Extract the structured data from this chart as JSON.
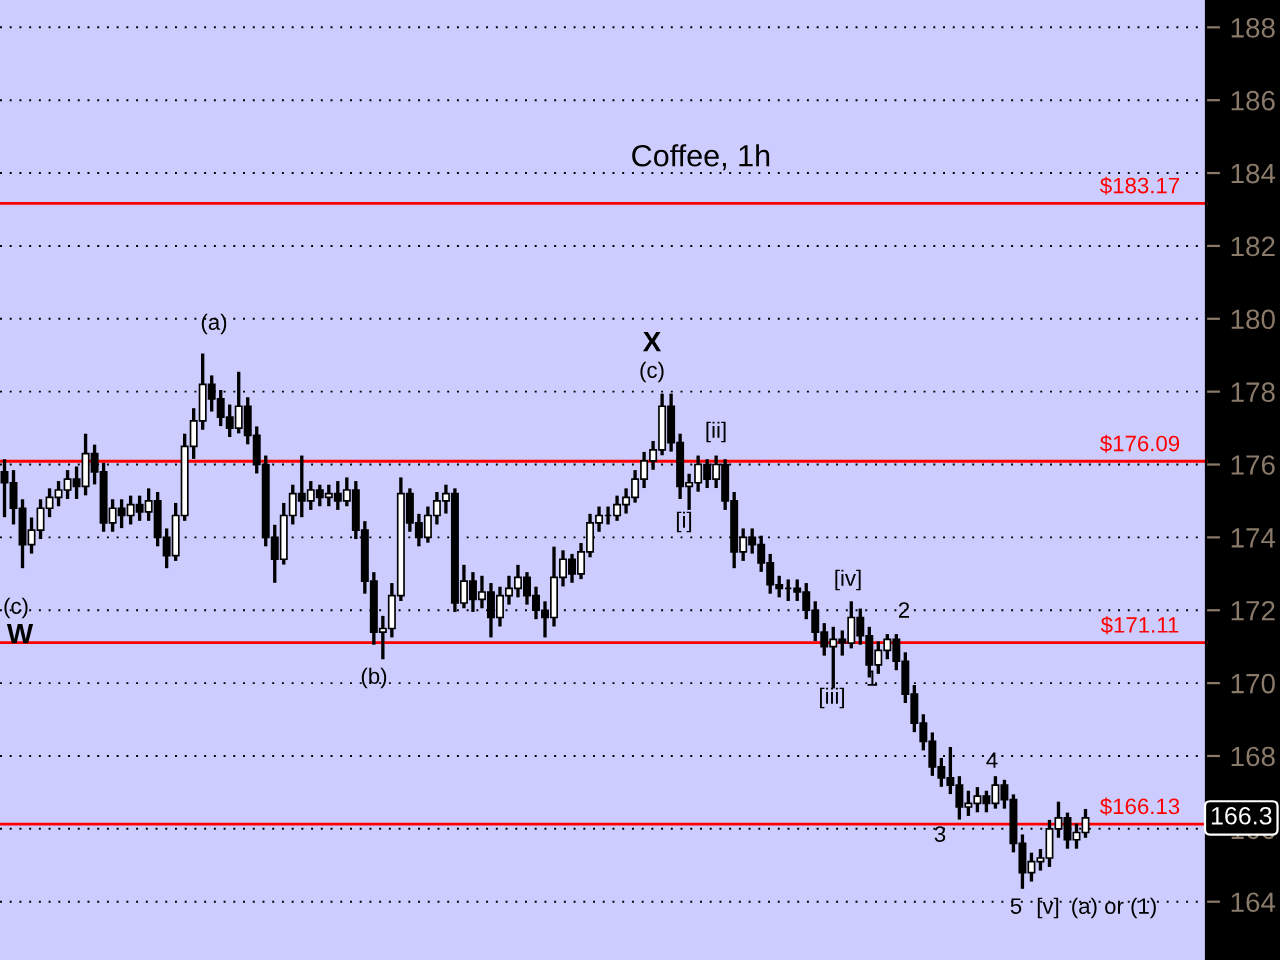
{
  "chart_data": {
    "type": "candlestick",
    "title": "Coffee, 1h",
    "categories": [
      null,
      null,
      null,
      null,
      null,
      null,
      null,
      null,
      null,
      null,
      null,
      null,
      null,
      null,
      null,
      null,
      null,
      null,
      null,
      null,
      null,
      null,
      null,
      null,
      null,
      null,
      null,
      null,
      null,
      null,
      null,
      null,
      null,
      null,
      null,
      null,
      null,
      null,
      null,
      null,
      null,
      null,
      null,
      null,
      null,
      null,
      null,
      null,
      null,
      null,
      null,
      null,
      null,
      null,
      null,
      null,
      null,
      null,
      null,
      null,
      null,
      null,
      null,
      null,
      null,
      null,
      null,
      null,
      null,
      null,
      null,
      null,
      null,
      null,
      null,
      null,
      null,
      null,
      null,
      null,
      null,
      null,
      null,
      null,
      null,
      null,
      null,
      null,
      null,
      null,
      null,
      null,
      null,
      null,
      null,
      null,
      null,
      null,
      null,
      null,
      null,
      null,
      null,
      null,
      null,
      null,
      null,
      null,
      null,
      null,
      null,
      null,
      null,
      null,
      null,
      null,
      null,
      null,
      null,
      null,
      null
    ],
    "ohlc": [
      [
        175.8,
        176.1,
        174.6,
        175.5
      ],
      [
        175.5,
        175.8,
        174.4,
        174.8
      ],
      [
        174.8,
        175.0,
        173.2,
        173.8
      ],
      [
        173.8,
        174.5,
        173.6,
        174.2
      ],
      [
        174.2,
        175.0,
        174.0,
        174.8
      ],
      [
        174.8,
        175.3,
        174.6,
        175.1
      ],
      [
        175.1,
        175.5,
        174.9,
        175.3
      ],
      [
        175.3,
        175.8,
        175.1,
        175.6
      ],
      [
        175.6,
        175.9,
        175.1,
        175.4
      ],
      [
        175.4,
        176.8,
        175.2,
        176.3
      ],
      [
        176.3,
        176.5,
        175.5,
        175.8
      ],
      [
        175.8,
        176.0,
        174.2,
        174.4
      ],
      [
        174.4,
        175.0,
        174.2,
        174.8
      ],
      [
        174.8,
        175.0,
        174.3,
        174.6
      ],
      [
        174.6,
        175.1,
        174.4,
        174.9
      ],
      [
        174.9,
        175.1,
        174.5,
        174.7
      ],
      [
        174.7,
        175.3,
        174.5,
        175.0
      ],
      [
        175.0,
        175.2,
        173.8,
        174.0
      ],
      [
        174.0,
        174.2,
        173.2,
        173.5
      ],
      [
        173.5,
        174.9,
        173.4,
        174.6
      ],
      [
        174.6,
        176.8,
        174.5,
        176.5
      ],
      [
        176.5,
        177.5,
        176.2,
        177.2
      ],
      [
        177.2,
        179.0,
        177.0,
        178.2
      ],
      [
        178.2,
        178.4,
        177.5,
        177.8
      ],
      [
        177.8,
        178.0,
        177.1,
        177.3
      ],
      [
        177.3,
        177.6,
        176.8,
        177.0
      ],
      [
        177.0,
        178.5,
        176.9,
        177.6
      ],
      [
        177.6,
        177.8,
        176.6,
        176.8
      ],
      [
        176.8,
        177.0,
        175.8,
        176.0
      ],
      [
        176.0,
        176.2,
        173.8,
        174.0
      ],
      [
        174.0,
        174.3,
        172.8,
        173.4
      ],
      [
        173.4,
        174.9,
        173.3,
        174.6
      ],
      [
        174.6,
        175.4,
        174.4,
        175.2
      ],
      [
        175.2,
        176.2,
        174.6,
        175.0
      ],
      [
        175.0,
        175.5,
        174.8,
        175.3
      ],
      [
        175.3,
        175.4,
        174.9,
        175.1
      ],
      [
        175.1,
        175.4,
        174.9,
        175.2
      ],
      [
        175.2,
        175.5,
        174.8,
        175.0
      ],
      [
        175.0,
        175.6,
        174.9,
        175.3
      ],
      [
        175.3,
        175.5,
        174.0,
        174.2
      ],
      [
        174.2,
        174.4,
        172.5,
        172.8
      ],
      [
        172.8,
        173.0,
        171.1,
        171.4
      ],
      [
        171.4,
        171.8,
        170.7,
        171.5
      ],
      [
        171.5,
        172.7,
        171.3,
        172.4
      ],
      [
        172.4,
        175.6,
        172.3,
        175.2
      ],
      [
        175.2,
        175.3,
        174.2,
        174.4
      ],
      [
        174.4,
        174.6,
        173.8,
        174.0
      ],
      [
        174.0,
        174.8,
        173.9,
        174.6
      ],
      [
        174.6,
        175.2,
        174.4,
        175.0
      ],
      [
        175.0,
        175.4,
        174.7,
        175.2
      ],
      [
        175.2,
        175.3,
        172.0,
        172.2
      ],
      [
        172.2,
        173.2,
        172.1,
        172.8
      ],
      [
        172.8,
        173.0,
        172.0,
        172.3
      ],
      [
        172.3,
        172.9,
        172.1,
        172.5
      ],
      [
        172.5,
        172.7,
        171.3,
        171.8
      ],
      [
        171.8,
        172.6,
        171.6,
        172.4
      ],
      [
        172.4,
        172.9,
        172.2,
        172.6
      ],
      [
        172.6,
        173.2,
        172.4,
        172.9
      ],
      [
        172.9,
        173.0,
        172.2,
        172.4
      ],
      [
        172.4,
        172.6,
        171.8,
        172.0
      ],
      [
        172.0,
        172.2,
        171.3,
        171.8
      ],
      [
        171.8,
        173.7,
        171.6,
        172.9
      ],
      [
        172.9,
        173.6,
        172.7,
        173.4
      ],
      [
        173.4,
        173.5,
        172.8,
        173.0
      ],
      [
        173.0,
        173.8,
        172.9,
        173.6
      ],
      [
        173.6,
        174.6,
        173.5,
        174.4
      ],
      [
        174.4,
        174.8,
        174.2,
        174.6
      ],
      [
        174.6,
        174.8,
        174.4,
        174.6
      ],
      [
        174.6,
        175.1,
        174.5,
        174.9
      ],
      [
        174.9,
        175.3,
        174.7,
        175.1
      ],
      [
        175.1,
        175.8,
        175.0,
        175.6
      ],
      [
        175.6,
        176.3,
        175.4,
        176.1
      ],
      [
        176.1,
        176.6,
        175.9,
        176.4
      ],
      [
        176.4,
        177.9,
        176.3,
        177.6
      ],
      [
        177.6,
        177.9,
        176.4,
        176.6
      ],
      [
        176.6,
        176.8,
        175.1,
        175.4
      ],
      [
        175.4,
        175.7,
        174.8,
        175.5
      ],
      [
        175.5,
        176.2,
        175.3,
        176.0
      ],
      [
        176.0,
        176.1,
        175.4,
        175.6
      ],
      [
        175.6,
        176.2,
        175.4,
        176.0
      ],
      [
        176.0,
        176.1,
        174.8,
        175.0
      ],
      [
        175.0,
        175.2,
        173.2,
        173.6
      ],
      [
        173.6,
        174.2,
        173.4,
        174.0
      ],
      [
        174.0,
        174.2,
        173.6,
        173.8
      ],
      [
        173.8,
        174.0,
        173.1,
        173.3
      ],
      [
        173.3,
        173.5,
        172.5,
        172.7
      ],
      [
        172.7,
        172.9,
        172.4,
        172.6
      ],
      [
        172.6,
        172.8,
        172.3,
        172.6
      ],
      [
        172.6,
        172.8,
        172.3,
        172.5
      ],
      [
        172.5,
        172.7,
        171.8,
        172.0
      ],
      [
        172.0,
        172.2,
        171.2,
        171.4
      ],
      [
        171.4,
        171.6,
        170.8,
        171.0
      ],
      [
        171.0,
        171.5,
        169.9,
        171.2
      ],
      [
        171.2,
        171.4,
        170.8,
        171.1
      ],
      [
        171.1,
        172.2,
        171.0,
        171.8
      ],
      [
        171.8,
        172.0,
        171.1,
        171.3
      ],
      [
        171.3,
        171.5,
        170.2,
        170.5
      ],
      [
        170.5,
        171.1,
        170.3,
        170.9
      ],
      [
        170.9,
        171.3,
        170.7,
        171.2
      ],
      [
        171.2,
        171.3,
        170.4,
        170.6
      ],
      [
        170.6,
        170.8,
        169.5,
        169.7
      ],
      [
        169.7,
        169.9,
        168.7,
        168.9
      ],
      [
        168.9,
        169.1,
        168.2,
        168.4
      ],
      [
        168.4,
        168.6,
        167.5,
        167.7
      ],
      [
        167.7,
        167.9,
        167.2,
        167.4
      ],
      [
        167.4,
        168.2,
        167.0,
        167.2
      ],
      [
        167.2,
        167.4,
        166.3,
        166.6
      ],
      [
        166.6,
        167.0,
        166.4,
        166.7
      ],
      [
        166.7,
        167.1,
        166.5,
        166.9
      ],
      [
        166.9,
        167.0,
        166.5,
        166.7
      ],
      [
        166.7,
        167.4,
        166.6,
        167.2
      ],
      [
        167.2,
        167.3,
        166.6,
        166.8
      ],
      [
        166.8,
        166.9,
        165.4,
        165.6
      ],
      [
        165.6,
        165.8,
        164.4,
        164.8
      ],
      [
        164.8,
        165.3,
        164.6,
        165.1
      ],
      [
        165.1,
        165.4,
        164.9,
        165.2
      ],
      [
        165.2,
        166.2,
        165.0,
        166.0
      ],
      [
        166.0,
        166.7,
        165.8,
        166.3
      ],
      [
        166.3,
        166.4,
        165.5,
        165.7
      ],
      [
        165.7,
        166.1,
        165.5,
        165.9
      ],
      [
        165.9,
        166.5,
        165.8,
        166.3
      ]
    ],
    "color": "#000000",
    "ylim": [
      162.4,
      188.75
    ],
    "yticks": [
      164,
      166,
      168,
      170,
      172,
      174,
      176,
      178,
      180,
      182,
      184,
      186,
      188
    ],
    "tick_labels": "y",
    "grid": "y",
    "ref_lines": [
      {
        "axis": "y",
        "value": 183.17,
        "label": "$183.17",
        "color": "#ff0000"
      },
      {
        "axis": "y",
        "value": 176.09,
        "label": "$176.09",
        "color": "#ff0000"
      },
      {
        "axis": "y",
        "value": 171.11,
        "label": "$171.11",
        "color": "#ff0000"
      },
      {
        "axis": "y",
        "value": 166.13,
        "label": "$166.13",
        "color": "#ff0000"
      }
    ],
    "annotations": [
      "(c)",
      "W",
      "(a)",
      "(b)",
      "X",
      "(c)",
      "[i]",
      "[ii]",
      "[iii]",
      "[iv]",
      "1",
      "2",
      "3",
      "4",
      "5",
      "[v]",
      "(a) or (1)",
      "166.3"
    ]
  }
}
